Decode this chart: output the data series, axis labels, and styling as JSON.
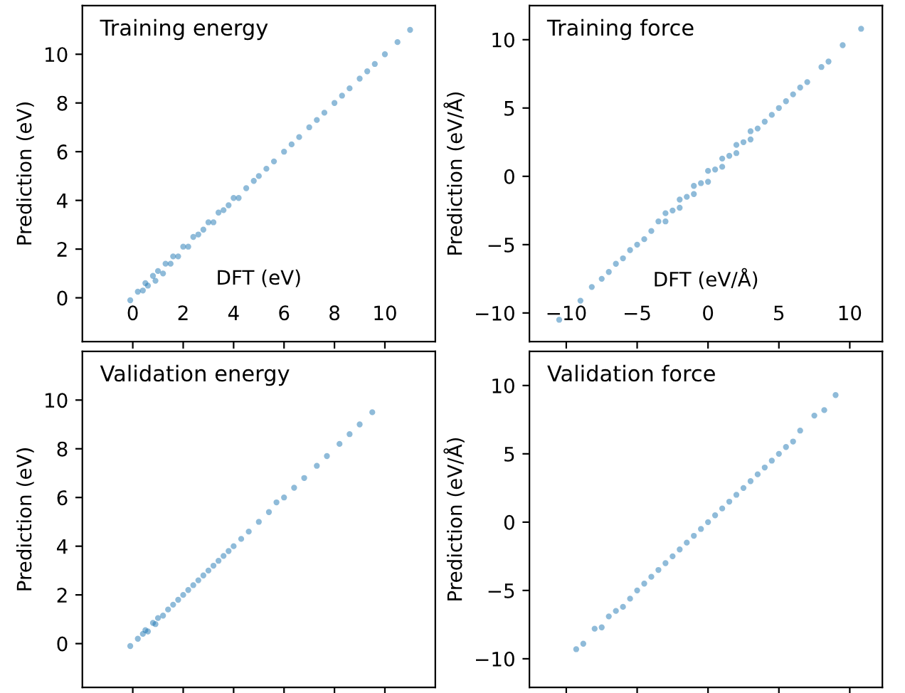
{
  "chart_data": [
    {
      "type": "scatter",
      "title": "Training energy",
      "xlabel": "DFT (eV)",
      "ylabel": "Prediction (eV)",
      "color": "#1f77b4",
      "marker": "circle",
      "xlim": [
        -2,
        12
      ],
      "ylim": [
        -1.8,
        12
      ],
      "xticks": [
        0,
        2,
        4,
        6,
        8,
        10
      ],
      "yticks": [
        0,
        2,
        4,
        6,
        8,
        10
      ],
      "x": [
        -0.1,
        0.2,
        0.4,
        0.5,
        0.6,
        0.8,
        0.9,
        1.0,
        1.2,
        1.3,
        1.5,
        1.6,
        1.8,
        2.0,
        2.2,
        2.4,
        2.6,
        2.8,
        3.0,
        3.2,
        3.4,
        3.6,
        3.8,
        4.0,
        4.2,
        4.5,
        4.8,
        5.0,
        5.3,
        5.6,
        6.0,
        6.3,
        6.6,
        7.0,
        7.3,
        7.6,
        8.0,
        8.3,
        8.6,
        9.0,
        9.3,
        9.6,
        10.0,
        10.5,
        11.0
      ],
      "values": [
        -0.1,
        0.25,
        0.3,
        0.6,
        0.5,
        0.9,
        0.7,
        1.1,
        1.0,
        1.4,
        1.4,
        1.7,
        1.7,
        2.1,
        2.1,
        2.5,
        2.6,
        2.8,
        3.1,
        3.1,
        3.5,
        3.6,
        3.8,
        4.1,
        4.1,
        4.5,
        4.8,
        5.0,
        5.3,
        5.6,
        6.0,
        6.3,
        6.6,
        7.0,
        7.3,
        7.6,
        8.0,
        8.3,
        8.6,
        9.0,
        9.3,
        9.6,
        10.0,
        10.5,
        11.0
      ]
    },
    {
      "type": "scatter",
      "title": "Training force",
      "xlabel": "DFT (eV/Å)",
      "ylabel": "Prediction (eV/Å)",
      "color": "#1f77b4",
      "marker": "circle",
      "xlim": [
        -12.6,
        12.3
      ],
      "ylim": [
        -12.1,
        12.5
      ],
      "xticks": [
        -10,
        -5,
        0,
        5,
        10
      ],
      "yticks": [
        -10,
        -5,
        0,
        5,
        10
      ],
      "x": [
        -10.5,
        -9.8,
        -9.0,
        -8.2,
        -7.5,
        -7.0,
        -6.5,
        -6.0,
        -5.5,
        -5.0,
        -4.5,
        -4.0,
        -3.5,
        -3.0,
        -3.0,
        -2.5,
        -2.0,
        -2.0,
        -1.5,
        -1.0,
        -1.0,
        -0.5,
        0.0,
        0.0,
        0.5,
        1.0,
        1.0,
        1.5,
        2.0,
        2.0,
        2.5,
        3.0,
        3.0,
        3.5,
        4.0,
        4.5,
        5.0,
        5.5,
        6.0,
        6.5,
        7.0,
        8.0,
        8.5,
        9.5,
        10.8
      ],
      "values": [
        -10.5,
        null,
        -9.1,
        -8.1,
        -7.5,
        -7.0,
        -6.4,
        -6.0,
        -5.4,
        -5.0,
        -4.6,
        -4.0,
        -3.3,
        -3.3,
        -2.7,
        -2.5,
        -2.3,
        -1.7,
        -1.5,
        -1.3,
        -0.7,
        -0.5,
        -0.4,
        0.4,
        0.5,
        0.7,
        1.3,
        1.5,
        1.7,
        2.3,
        2.5,
        2.7,
        3.3,
        3.5,
        4.0,
        4.5,
        5.0,
        5.5,
        6.0,
        6.5,
        6.9,
        8.0,
        8.4,
        9.6,
        10.8
      ]
    },
    {
      "type": "scatter",
      "title": "Validation energy",
      "ylabel": "Prediction (eV)",
      "color": "#1f77b4",
      "marker": "circle",
      "tick_labels": "y",
      "xlim": [
        -2,
        12
      ],
      "ylim": [
        -1.8,
        12
      ],
      "xticks": [
        0,
        2,
        4,
        6,
        8,
        10
      ],
      "yticks": [
        0,
        2,
        4,
        6,
        8,
        10
      ],
      "x": [
        -0.1,
        0.2,
        0.4,
        0.5,
        0.6,
        0.8,
        0.9,
        1.0,
        1.2,
        1.4,
        1.6,
        1.8,
        2.0,
        2.2,
        2.4,
        2.6,
        2.8,
        3.0,
        3.2,
        3.4,
        3.6,
        3.8,
        4.0,
        4.3,
        4.6,
        5.0,
        5.4,
        5.7,
        6.0,
        6.4,
        6.8,
        7.3,
        7.7,
        8.2,
        8.6,
        9.0,
        9.5
      ],
      "values": [
        -0.1,
        0.2,
        0.4,
        0.55,
        0.5,
        0.85,
        0.8,
        1.05,
        1.15,
        1.4,
        1.6,
        1.8,
        2.0,
        2.2,
        2.4,
        2.6,
        2.8,
        3.0,
        3.2,
        3.4,
        3.6,
        3.8,
        4.0,
        4.3,
        4.6,
        5.0,
        5.4,
        5.8,
        6.0,
        6.4,
        6.8,
        7.3,
        7.7,
        8.2,
        8.6,
        9.0,
        9.5
      ]
    },
    {
      "type": "scatter",
      "title": "Validation force",
      "ylabel": "Prediction (eV/Å)",
      "color": "#1f77b4",
      "marker": "circle",
      "tick_labels": "y",
      "xlim": [
        -12.6,
        12.3
      ],
      "ylim": [
        -12.1,
        12.5
      ],
      "xticks": [
        -10,
        -5,
        0,
        5,
        10
      ],
      "yticks": [
        -10,
        -5,
        0,
        5,
        10
      ],
      "x": [
        -9.3,
        -8.8,
        -8.0,
        -7.5,
        -7.0,
        -6.5,
        -6.0,
        -5.5,
        -5.0,
        -4.5,
        -4.0,
        -3.5,
        -3.0,
        -2.5,
        -2.0,
        -1.5,
        -1.0,
        -0.5,
        0.0,
        0.5,
        1.0,
        1.5,
        2.0,
        2.5,
        3.0,
        3.5,
        4.0,
        4.5,
        5.0,
        5.5,
        6.0,
        6.5,
        7.5,
        8.2,
        9.0
      ],
      "values": [
        -9.3,
        -8.9,
        -7.8,
        -7.7,
        -6.9,
        -6.5,
        -6.2,
        -5.6,
        -5.0,
        -4.5,
        -4.0,
        -3.5,
        -3.0,
        -2.5,
        -2.0,
        -1.5,
        -1.0,
        -0.5,
        0.0,
        0.5,
        1.0,
        1.5,
        2.0,
        2.5,
        3.0,
        3.5,
        4.0,
        4.5,
        5.0,
        5.5,
        5.9,
        6.7,
        7.8,
        8.2,
        9.3
      ]
    }
  ]
}
